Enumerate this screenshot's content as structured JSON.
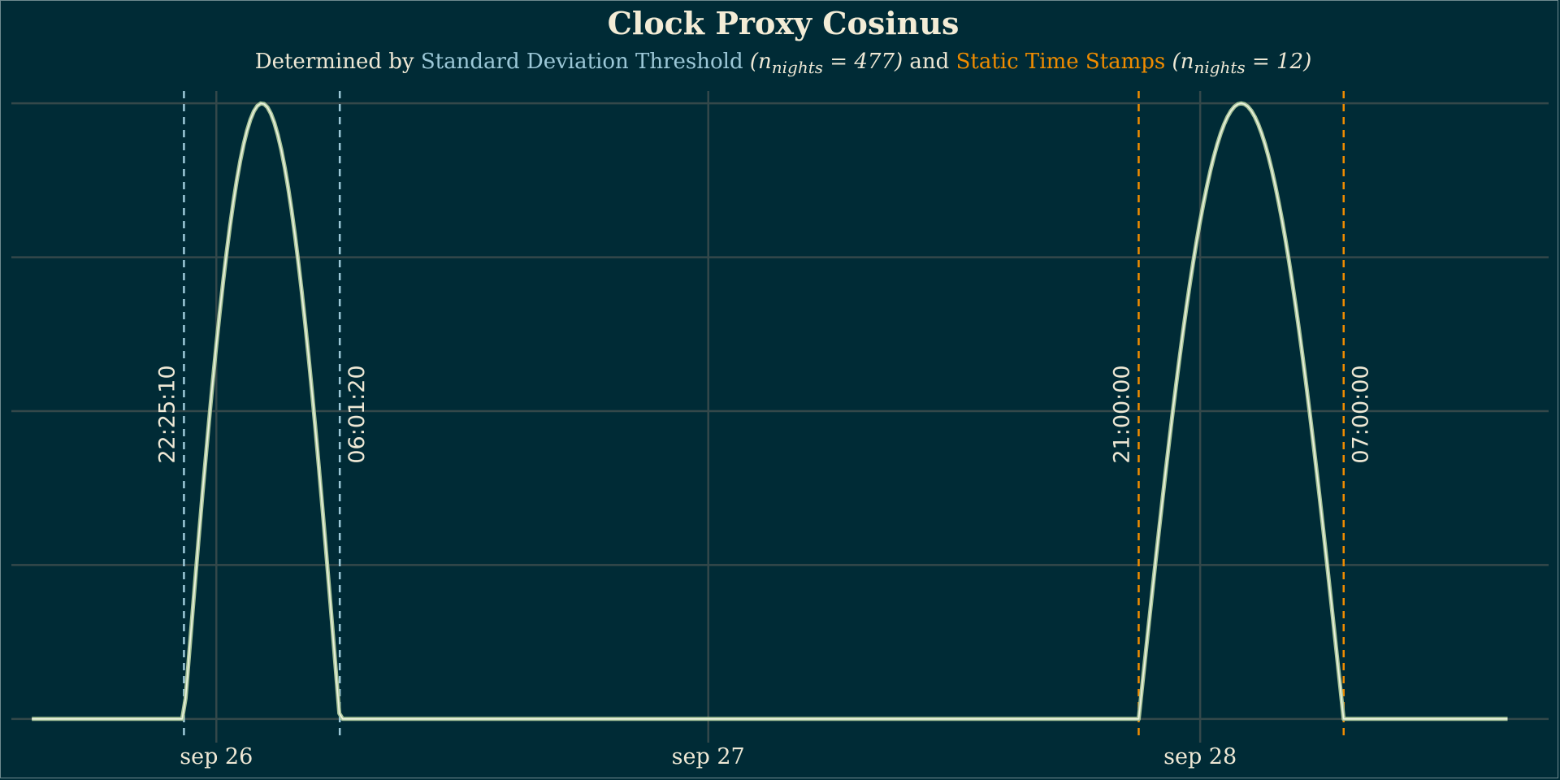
{
  "chart_data": {
    "type": "line",
    "title": "Clock Proxy Cosinus",
    "subtitle": {
      "prefix": "Determined by ",
      "sd_method": "Standard Deviation Threshold",
      "sd_n": "(n",
      "sd_n_sub": "nights",
      "sd_n_val": " = 477)",
      "joiner": " and ",
      "static_method": "Static Time Stamps",
      "static_n": "(n",
      "static_n_sub": "nights",
      "static_n_val": " = 12)"
    },
    "xlabel": "",
    "ylabel": "",
    "xlim": [
      "2023-09-25T14:00",
      "2023-09-28T17:00"
    ],
    "ylim": [
      -0.02,
      1.02
    ],
    "x_ticks": [
      "2023-09-26T00:00",
      "2023-09-27T00:00",
      "2023-09-28T00:00"
    ],
    "x_tick_labels": [
      "sep 26",
      "sep 27",
      "sep 28"
    ],
    "y_gridlines": [
      0,
      0.25,
      0.5,
      0.75,
      1.0
    ],
    "y_tick_labels_shown": false,
    "grid": true,
    "series": [
      {
        "color": "#a8c49a",
        "nights": [
          {
            "start": "2023-09-25T22:25:10",
            "end": "2023-09-26T06:01:20"
          },
          {
            "start": "2023-09-27T21:00:00",
            "end": "2023-09-28T07:00:00"
          }
        ],
        "x_range": [
          "2023-09-25T15:00",
          "2023-09-28T15:00"
        ],
        "baseline": 0,
        "peak": 1
      }
    ],
    "markers": [
      {
        "x": "2023-09-25T22:25:10",
        "label": "22:25:10",
        "method": "sd",
        "label_side": "left"
      },
      {
        "x": "2023-09-26T06:01:20",
        "label": "06:01:20",
        "method": "sd",
        "label_side": "right"
      },
      {
        "x": "2023-09-27T21:00:00",
        "label": "21:00:00",
        "method": "static",
        "label_side": "left"
      },
      {
        "x": "2023-09-28T07:00:00",
        "label": "07:00:00",
        "method": "static",
        "label_side": "right"
      }
    ],
    "colors": {
      "background": "#002b36",
      "grid": "#34484a",
      "sd": "#9cc8d8",
      "static": "#f08c00",
      "line": "#a8c49a",
      "text": "#eee8d5"
    }
  }
}
